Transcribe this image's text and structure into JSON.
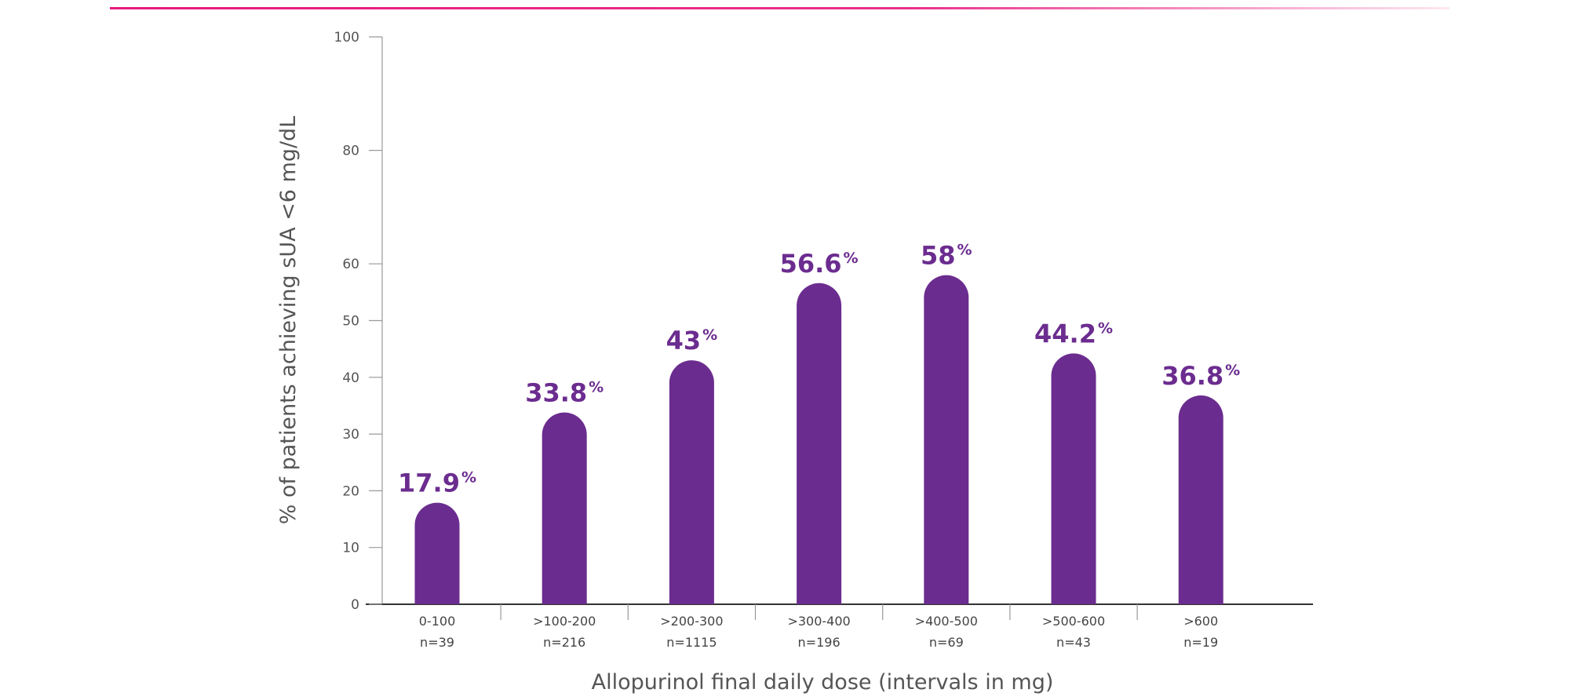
{
  "chart_data": {
    "type": "bar",
    "title": "",
    "xlabel": "Allopurinol final daily dose (intervals in mg)",
    "ylabel": "% of patients achieving sUA <6 mg/dL",
    "ylim": [
      0,
      100
    ],
    "yticks": [
      0,
      10,
      20,
      30,
      40,
      50,
      60,
      80,
      100
    ],
    "categories": [
      "0-100",
      ">100-200",
      ">200-300",
      ">300-400",
      ">400-500",
      ">500-600",
      ">600"
    ],
    "n_labels": [
      "n=39",
      "n=216",
      "n=1115",
      "n=196",
      "n=69",
      "n=43",
      "n=19"
    ],
    "values": [
      17.9,
      33.8,
      43,
      56.6,
      58,
      44.2,
      36.8
    ],
    "value_labels": [
      "17.9",
      "33.8",
      "43",
      "56.6",
      "58",
      "44.2",
      "36.8"
    ],
    "value_suffix": "%",
    "grid": false,
    "colors": {
      "bar": "#6b2c8f",
      "accent_line": "#e8197d",
      "axis": "#333333"
    }
  }
}
